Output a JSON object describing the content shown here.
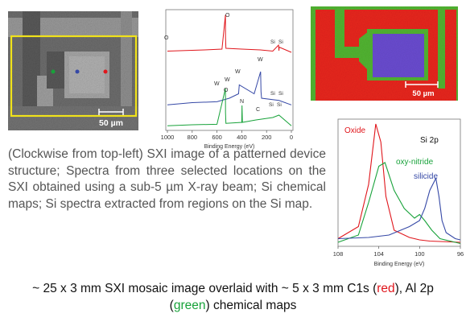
{
  "sxi_panel": {
    "scale_label": "50 µm"
  },
  "survey_panel": {
    "peaks": {
      "o_top": "O",
      "o_left": "O",
      "si_red_1": "Si",
      "si_red_2": "Si",
      "w_1": "W",
      "w_2": "W",
      "w_3": "W",
      "w_4": "W",
      "si_blue_1": "Si",
      "si_blue_2": "Si",
      "o_green": "O",
      "n_green": "N",
      "c_green": "C",
      "si_green_1": "Si",
      "si_green_2": "Si"
    },
    "xlabel": "Binding Energy (eV)"
  },
  "map_panel": {
    "scale_label": "50 µm"
  },
  "si2p_panel": {
    "title": "Si 2p",
    "oxide_label": "Oxide",
    "oxynitride_label": "oxy-nitride",
    "silicide_label": "silicide",
    "xlabel": "Binding Energy (eV)"
  },
  "colors": {
    "red": "#e0161c",
    "green": "#18a23a",
    "blue": "#3548a6",
    "yellow": "#f0e21a",
    "map_red": "#e8261c",
    "map_green": "#52b432",
    "map_purple": "#6a4cd0"
  },
  "caption": {
    "text": "(Clockwise from top-left) SXI image of a patterned device structure; Spectra from three selected locations on the SXI obtained using a sub-5 µm X-ray beam; Si chemical maps; Si spectra extracted from regions on the Si map."
  },
  "footer": {
    "part1": "~ 25 x 3 mm SXI mosaic image overlaid with ~ 5 x 3 mm C1s (",
    "red_word": "red",
    "part2": "), Al 2p",
    "open_paren": "(",
    "green_word": "green",
    "part3": ") chemical maps"
  },
  "chart_data": [
    {
      "type": "line",
      "title": "",
      "xlabel": "Binding Energy (eV)",
      "ylabel": "",
      "xlim": [
        1000,
        0
      ],
      "x_ticks": [
        1000,
        800,
        600,
        400,
        200,
        0
      ],
      "series": [
        {
          "color": "#e0161c",
          "x": [
            1000,
            700,
            560,
            532,
            531,
            528,
            400,
            250,
            150,
            103,
            100,
            99,
            0
          ],
          "y": [
            0.05,
            0.08,
            0.1,
            0.95,
            0.4,
            0.12,
            0.1,
            0.08,
            0.05,
            0.2,
            0.06,
            0.15,
            0.02
          ]
        },
        {
          "color": "#3548a6",
          "x": [
            1000,
            800,
            600,
            500,
            426,
            420,
            300,
            248,
            245,
            240,
            100,
            0
          ],
          "y": [
            0.05,
            0.1,
            0.12,
            0.2,
            0.3,
            0.5,
            0.3,
            0.8,
            0.35,
            0.2,
            0.15,
            0.05
          ]
        },
        {
          "color": "#18a23a",
          "x": [
            1000,
            800,
            600,
            532,
            531,
            528,
            400,
            398,
            395,
            285,
            150,
            100,
            0
          ],
          "y": [
            0.03,
            0.05,
            0.06,
            0.8,
            0.3,
            0.08,
            0.1,
            0.45,
            0.1,
            0.15,
            0.2,
            0.25,
            0.03
          ]
        }
      ]
    },
    {
      "type": "line",
      "title": "Si 2p",
      "xlabel": "Binding Energy (eV)",
      "ylabel": "",
      "xlim": [
        108,
        96
      ],
      "x_ticks": [
        108,
        104,
        100,
        96
      ],
      "series": [
        {
          "name": "Oxide",
          "color": "#e0161c",
          "x": [
            108,
            106,
            105,
            104.3,
            103.8,
            103.3,
            102.5,
            101,
            100,
            99,
            96
          ],
          "y": [
            0.05,
            0.15,
            0.5,
            1.0,
            0.85,
            0.4,
            0.12,
            0.06,
            0.04,
            0.03,
            0.02
          ]
        },
        {
          "name": "oxy-nitride",
          "color": "#18a23a",
          "x": [
            108,
            106,
            105,
            104,
            103.4,
            102.5,
            101.5,
            100.5,
            100,
            99.5,
            98.8,
            98,
            96
          ],
          "y": [
            0.02,
            0.08,
            0.35,
            0.65,
            0.68,
            0.45,
            0.3,
            0.22,
            0.25,
            0.2,
            0.12,
            0.05,
            0.01
          ]
        },
        {
          "name": "silicide",
          "color": "#3548a6",
          "x": [
            108,
            105,
            103,
            101,
            100,
            99.5,
            99,
            98.4,
            98.1,
            97.8,
            97.4,
            96.5,
            96
          ],
          "y": [
            0.05,
            0.06,
            0.08,
            0.15,
            0.2,
            0.3,
            0.45,
            0.55,
            0.4,
            0.2,
            0.1,
            0.05,
            0.04
          ]
        }
      ]
    }
  ]
}
